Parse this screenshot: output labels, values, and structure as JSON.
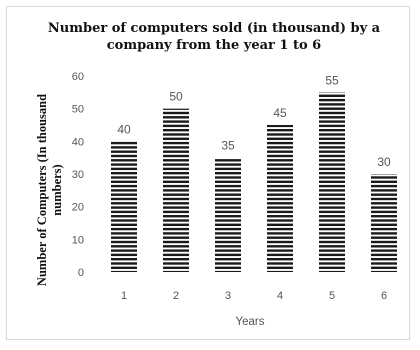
{
  "chart_data": {
    "type": "bar",
    "title_line1": "Number of computers sold (in thousand) by a",
    "title_line2": "company from the year  1 to 6",
    "xlabel": "Years",
    "ylabel_line1": "Number of Computers (In thousand",
    "ylabel_line2": "numbers)",
    "categories": [
      "1",
      "2",
      "3",
      "4",
      "5",
      "6"
    ],
    "values": [
      40,
      50,
      35,
      45,
      55,
      30
    ],
    "data_labels": [
      "40",
      "50",
      "35",
      "45",
      "55",
      "30"
    ],
    "ylim": [
      0,
      60
    ],
    "yticks": [
      "0",
      "10",
      "20",
      "30",
      "40",
      "50",
      "60"
    ],
    "grid": false,
    "bar_fill": "horizontal-stripes",
    "bar_color": "#1a1a1a"
  }
}
